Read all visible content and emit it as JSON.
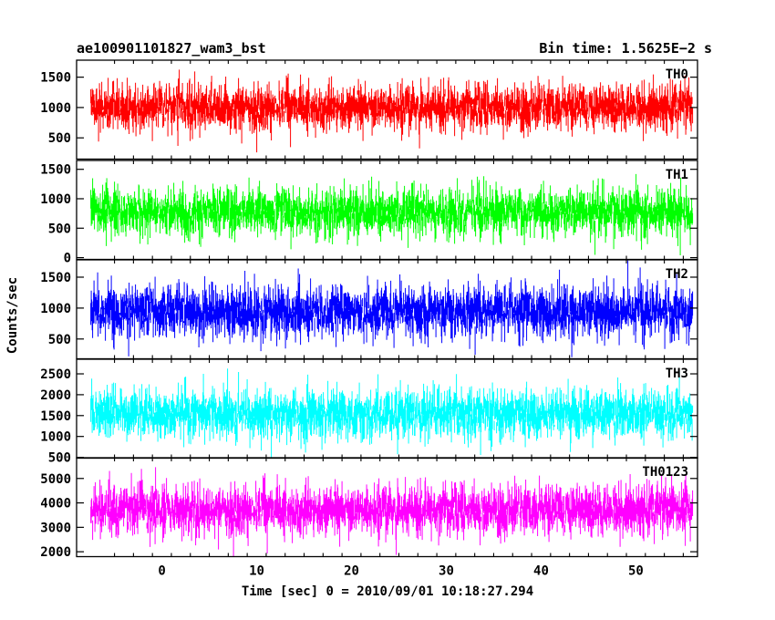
{
  "header": {
    "left_title": "ae100901101827_wam3_bst",
    "right_title": "Bin time: 1.5625E−2 s"
  },
  "chart_data": {
    "type": "line",
    "title": "ae100901101827_wam3_bst",
    "subtitle": "Bin time: 1.5625E−2 s",
    "xlabel": "Time [sec] 0 = 2010/09/01 10:18:27.294",
    "ylabel": "Counts/sec",
    "xlim": [
      -9,
      56.5
    ],
    "x_data_range": [
      -7.5,
      56
    ],
    "x_ticks": [
      0,
      10,
      20,
      30,
      40,
      50
    ],
    "x_tick_labels": [
      "0",
      "10",
      "20",
      "30",
      "40",
      "50"
    ],
    "grid": false,
    "panels": [
      {
        "name": "TH0",
        "color": "#ff0000",
        "ylim": [
          150,
          1780
        ],
        "y_ticks": [
          500,
          1000,
          1500
        ],
        "y_tick_labels": [
          "500",
          "1000",
          "1500"
        ],
        "mean": 1000,
        "noise_sd": 240,
        "typical_min": 250,
        "typical_max": 1780
      },
      {
        "name": "TH1",
        "color": "#00ff00",
        "ylim": [
          -30,
          1650
        ],
        "y_ticks": [
          0,
          500,
          1000,
          1500
        ],
        "y_tick_labels": [
          "0",
          "500",
          "1000",
          "1500"
        ],
        "mean": 780,
        "noise_sd": 260,
        "typical_min": 80,
        "typical_max": 1650
      },
      {
        "name": "TH2",
        "color": "#0000ff",
        "ylim": [
          180,
          1780
        ],
        "y_ticks": [
          500,
          1000,
          1500
        ],
        "y_tick_labels": [
          "500",
          "1000",
          "1500"
        ],
        "mean": 950,
        "noise_sd": 270,
        "typical_min": 250,
        "typical_max": 1780
      },
      {
        "name": "TH3",
        "color": "#00ffff",
        "ylim": [
          480,
          2850
        ],
        "y_ticks": [
          500,
          1000,
          1500,
          2000,
          2500
        ],
        "y_tick_labels": [
          "500",
          "1000",
          "1500",
          "2000",
          "2500"
        ],
        "mean": 1550,
        "noise_sd": 380,
        "typical_min": 550,
        "typical_max": 2850
      },
      {
        "name": "TH0123",
        "color": "#ff00ff",
        "ylim": [
          1800,
          5850
        ],
        "y_ticks": [
          2000,
          3000,
          4000,
          5000
        ],
        "y_tick_labels": [
          "2000",
          "3000",
          "4000",
          "5000"
        ],
        "mean": 3700,
        "noise_sd": 650,
        "typical_min": 1900,
        "typical_max": 5850
      }
    ]
  }
}
